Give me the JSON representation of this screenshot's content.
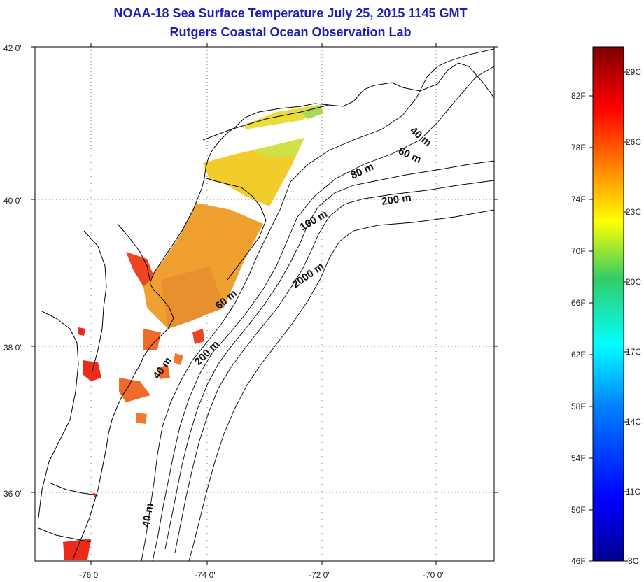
{
  "header": {
    "title": "NOAA-18 Sea Surface Temperature July 25, 2015 1145 GMT",
    "subtitle": "Rutgers Coastal Ocean Observation Lab"
  },
  "map": {
    "lat_labels": [
      "42 0'",
      "40 0'",
      "38 0'",
      "36 0'"
    ],
    "lon_labels": [
      "-76 0'",
      "-74 0'",
      "-72 0'",
      "-70 0'"
    ],
    "depth_labels": [
      "40 m",
      "60 m",
      "80 m",
      "200 m",
      "100 m",
      "2000 m",
      "60 m",
      "200 m",
      "40 m",
      "40 m"
    ]
  },
  "colorbar": {
    "fahrenheit_labels": [
      "82F",
      "78F",
      "74F",
      "70F",
      "66F",
      "62F",
      "58F",
      "54F",
      "50F",
      "46F"
    ],
    "celsius_labels": [
      "29C",
      "26C",
      "23C",
      "20C",
      "17C",
      "14C",
      "11C",
      "8C"
    ],
    "colors": [
      "#7f0000",
      "#ff0000",
      "#ff8c00",
      "#ffff00",
      "#33cc66",
      "#00ffff",
      "#0080ff",
      "#0000ff",
      "#00008f"
    ]
  }
}
